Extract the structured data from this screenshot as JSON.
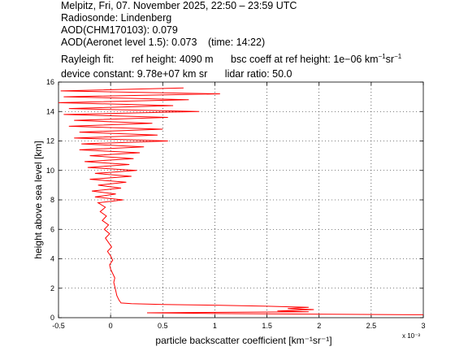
{
  "header": {
    "line1": "Melpitz, Fri, 07. November 2025, 22:50 – 23:59 UTC",
    "line2": "Radiosonde: Lindenberg",
    "line3": "AOD(CHM170103): 0.079",
    "line4a": "AOD(Aeronet level 1.5): 0.073",
    "line4b": "(time: 14:22)",
    "rayleigh_label": "Rayleigh fit:",
    "ref_height": "ref height: 4090 m",
    "bsc_coeff_prefix": "bsc coeff at ref height: 1e−06 km",
    "unit_sup1": "−1",
    "unit_sr": "sr",
    "unit_sup2": "−1",
    "device_constant": "device constant: 9.78e+07 km sr",
    "lidar_ratio": "lidar ratio: 50.0"
  },
  "chart_data": {
    "type": "line",
    "xlabel": "particle backscatter coefficient [km⁻¹sr⁻¹]",
    "ylabel": "height above sea level [km]",
    "x_multiplier": "x 10⁻³",
    "xlim": [
      -0.5,
      3.0
    ],
    "ylim": [
      0,
      16
    ],
    "xticks": [
      "-0.5",
      "0",
      "0.5",
      "1",
      "1.5",
      "2",
      "2.5",
      "3"
    ],
    "yticks": [
      "0",
      "2",
      "4",
      "6",
      "8",
      "10",
      "12",
      "14",
      "16"
    ],
    "grid": true,
    "series_color": "#ff0000",
    "series": [
      {
        "values": [
          [
            3.0,
            0.2
          ],
          [
            1.0,
            0.28
          ],
          [
            0.35,
            0.33
          ],
          [
            1.9,
            0.4
          ],
          [
            1.6,
            0.45
          ],
          [
            1.95,
            0.55
          ],
          [
            1.7,
            0.62
          ],
          [
            1.9,
            0.7
          ],
          [
            1.5,
            0.78
          ],
          [
            1.0,
            0.85
          ],
          [
            0.5,
            0.9
          ],
          [
            0.2,
            0.95
          ],
          [
            0.1,
            1.0
          ],
          [
            0.08,
            1.2
          ],
          [
            0.06,
            1.5
          ],
          [
            0.05,
            1.8
          ],
          [
            0.04,
            2.1
          ],
          [
            0.03,
            2.4
          ],
          [
            0.04,
            2.7
          ],
          [
            0.02,
            3.0
          ],
          [
            0.0,
            3.3
          ],
          [
            -0.01,
            3.6
          ],
          [
            0.02,
            3.9
          ],
          [
            0.0,
            4.2
          ],
          [
            -0.03,
            4.5
          ],
          [
            0.01,
            4.8
          ],
          [
            -0.02,
            5.1
          ],
          [
            -0.05,
            5.4
          ],
          [
            -0.01,
            5.7
          ],
          [
            -0.06,
            6.0
          ],
          [
            -0.02,
            6.3
          ],
          [
            -0.08,
            6.6
          ],
          [
            -0.04,
            6.9
          ],
          [
            -0.1,
            7.2
          ],
          [
            -0.05,
            7.5
          ],
          [
            -0.12,
            7.8
          ],
          [
            0.12,
            8.0
          ],
          [
            -0.15,
            8.2
          ],
          [
            0.05,
            8.4
          ],
          [
            -0.18,
            8.6
          ],
          [
            0.1,
            8.8
          ],
          [
            -0.12,
            9.0
          ],
          [
            0.15,
            9.2
          ],
          [
            -0.2,
            9.4
          ],
          [
            0.2,
            9.6
          ],
          [
            -0.15,
            9.8
          ],
          [
            0.25,
            10.0
          ],
          [
            -0.22,
            10.2
          ],
          [
            0.18,
            10.4
          ],
          [
            -0.25,
            10.6
          ],
          [
            0.22,
            10.8
          ],
          [
            -0.2,
            11.0
          ],
          [
            0.28,
            11.2
          ],
          [
            -0.3,
            11.4
          ],
          [
            0.32,
            11.6
          ],
          [
            -0.28,
            11.8
          ],
          [
            0.55,
            12.0
          ],
          [
            -0.35,
            12.2
          ],
          [
            0.45,
            12.4
          ],
          [
            -0.3,
            12.6
          ],
          [
            0.5,
            12.8
          ],
          [
            -0.4,
            13.0
          ],
          [
            0.4,
            13.2
          ],
          [
            -0.35,
            13.4
          ],
          [
            0.55,
            13.6
          ],
          [
            -0.45,
            13.8
          ],
          [
            0.85,
            14.0
          ],
          [
            -0.4,
            14.2
          ],
          [
            0.6,
            14.4
          ],
          [
            -0.5,
            14.6
          ],
          [
            0.75,
            14.8
          ],
          [
            -0.45,
            15.0
          ],
          [
            1.05,
            15.2
          ],
          [
            -0.48,
            15.4
          ],
          [
            0.7,
            15.6
          ]
        ]
      }
    ]
  }
}
